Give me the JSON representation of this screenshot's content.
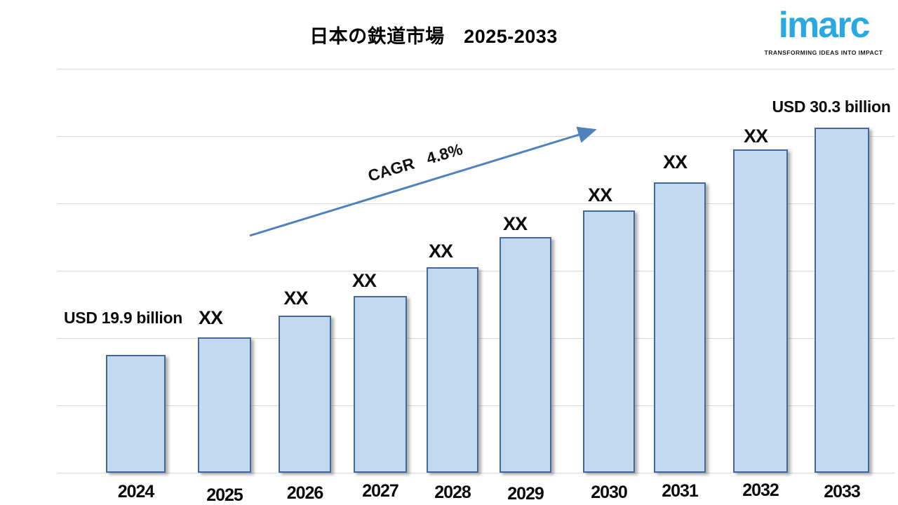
{
  "page": {
    "background": "#FFFFFF"
  },
  "header": {
    "logo": {
      "name": "imarc",
      "tagline": "TRANSFORMING IDEAS INTO IMPACT",
      "color": "#29A9E1",
      "tagline_color": "#1A1A1A"
    }
  },
  "chart_data": {
    "type": "bar",
    "title": "日本の鉄道市場　2025-2033",
    "categories": [
      "2024",
      "2025",
      "2026",
      "2027",
      "2028",
      "2029",
      "2030",
      "2031",
      "2032",
      "2033"
    ],
    "values": [
      19.9,
      20.7,
      21.7,
      22.6,
      23.9,
      25.3,
      26.5,
      27.8,
      29.3,
      30.3
    ],
    "unit": "USD billion",
    "bar_labels": [
      "USD 19.9 billion",
      "XX",
      "XX",
      "XX",
      "XX",
      "XX",
      "XX",
      "XX",
      "XX",
      "USD  30.3 billion"
    ],
    "annotation": {
      "text": "CAGR   4.8%"
    },
    "first_year_value_label": "USD 19.9 billion",
    "last_year_value_label": "USD  30.3 billion",
    "ylim": [
      14.5,
      33.0
    ],
    "gridlines": {
      "count": 7,
      "color": "#D8D8D8",
      "visible": true
    },
    "legend": {
      "visible": false
    },
    "colors": {
      "bar_fill": "#C3D9F0",
      "bar_border": "#45689B",
      "arrow": "#4F81BD",
      "label": "#0D0D0D",
      "title": "#000000"
    }
  }
}
